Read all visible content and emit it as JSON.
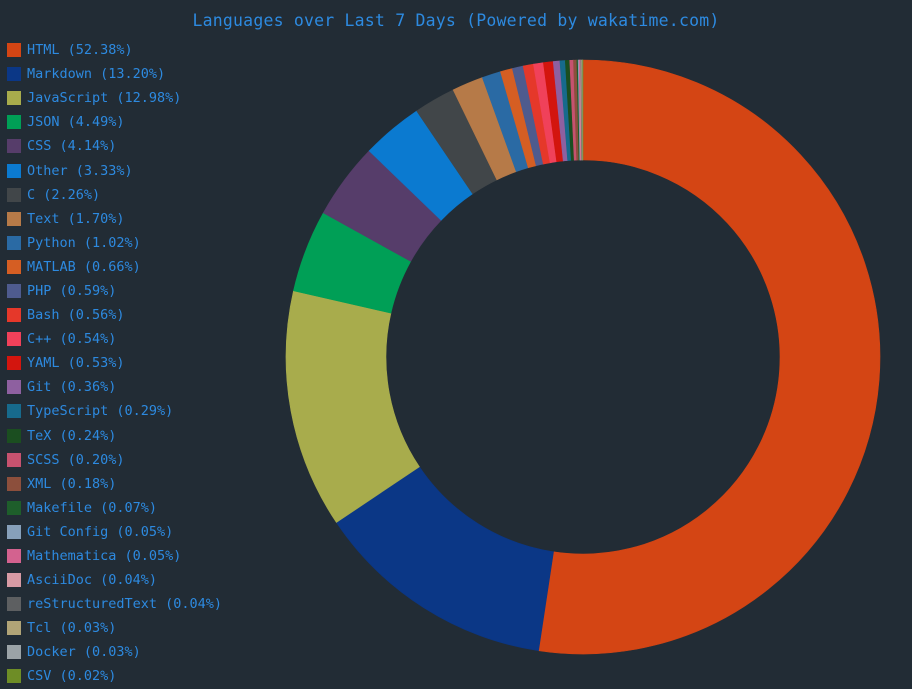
{
  "chart_data": {
    "type": "pie",
    "variant": "donut",
    "title": "Languages over Last 7 Days (Powered by wakatime.com)",
    "legend_position": "left",
    "series": [
      {
        "name": "HTML",
        "label": "HTML (52.38%)",
        "value": 52.38,
        "color": "#d44514"
      },
      {
        "name": "Markdown",
        "label": "Markdown (13.20%)",
        "value": 13.2,
        "color": "#0b3786"
      },
      {
        "name": "JavaScript",
        "label": "JavaScript (12.98%)",
        "value": 12.98,
        "color": "#a8ac4c"
      },
      {
        "name": "JSON",
        "label": "JSON (4.49%)",
        "value": 4.49,
        "color": "#009f56"
      },
      {
        "name": "CSS",
        "label": "CSS (4.14%)",
        "value": 4.14,
        "color": "#563d6a"
      },
      {
        "name": "Other",
        "label": "Other (3.33%)",
        "value": 3.33,
        "color": "#0b7ad0"
      },
      {
        "name": "C",
        "label": "C (2.26%)",
        "value": 2.26,
        "color": "#414649"
      },
      {
        "name": "Text",
        "label": "Text (1.70%)",
        "value": 1.7,
        "color": "#b67a48"
      },
      {
        "name": "Python",
        "label": "Python (1.02%)",
        "value": 1.02,
        "color": "#2a6aa4"
      },
      {
        "name": "MATLAB",
        "label": "MATLAB (0.66%)",
        "value": 0.66,
        "color": "#d55e23"
      },
      {
        "name": "PHP",
        "label": "PHP (0.59%)",
        "value": 0.59,
        "color": "#4e5b8e"
      },
      {
        "name": "Bash",
        "label": "Bash (0.56%)",
        "value": 0.56,
        "color": "#e5382a"
      },
      {
        "name": "C++",
        "label": "C++ (0.54%)",
        "value": 0.54,
        "color": "#f0415a"
      },
      {
        "name": "YAML",
        "label": "YAML (0.53%)",
        "value": 0.53,
        "color": "#d3150e"
      },
      {
        "name": "Git",
        "label": "Git (0.36%)",
        "value": 0.36,
        "color": "#8e60a0"
      },
      {
        "name": "TypeScript",
        "label": "TypeScript (0.29%)",
        "value": 0.29,
        "color": "#176a8c"
      },
      {
        "name": "TeX",
        "label": "TeX (0.24%)",
        "value": 0.24,
        "color": "#1b4e20"
      },
      {
        "name": "SCSS",
        "label": "SCSS (0.20%)",
        "value": 0.2,
        "color": "#c6526f"
      },
      {
        "name": "XML",
        "label": "XML (0.18%)",
        "value": 0.18,
        "color": "#8c4f3c"
      },
      {
        "name": "Makefile",
        "label": "Makefile (0.07%)",
        "value": 0.07,
        "color": "#1e5e2b"
      },
      {
        "name": "Git Config",
        "label": "Git Config (0.05%)",
        "value": 0.05,
        "color": "#87a0ba"
      },
      {
        "name": "Mathematica",
        "label": "Mathematica (0.05%)",
        "value": 0.05,
        "color": "#d3628f"
      },
      {
        "name": "AsciiDoc",
        "label": "AsciiDoc (0.04%)",
        "value": 0.04,
        "color": "#d79ba5"
      },
      {
        "name": "reStructuredText",
        "label": "reStructuredText (0.04%)",
        "value": 0.04,
        "color": "#5d5f61"
      },
      {
        "name": "Tcl",
        "label": "Tcl (0.03%)",
        "value": 0.03,
        "color": "#b1a477"
      },
      {
        "name": "Docker",
        "label": "Docker (0.03%)",
        "value": 0.03,
        "color": "#9ba3a7"
      },
      {
        "name": "CSV",
        "label": "CSV (0.02%)",
        "value": 0.02,
        "color": "#6e8d26"
      }
    ]
  }
}
